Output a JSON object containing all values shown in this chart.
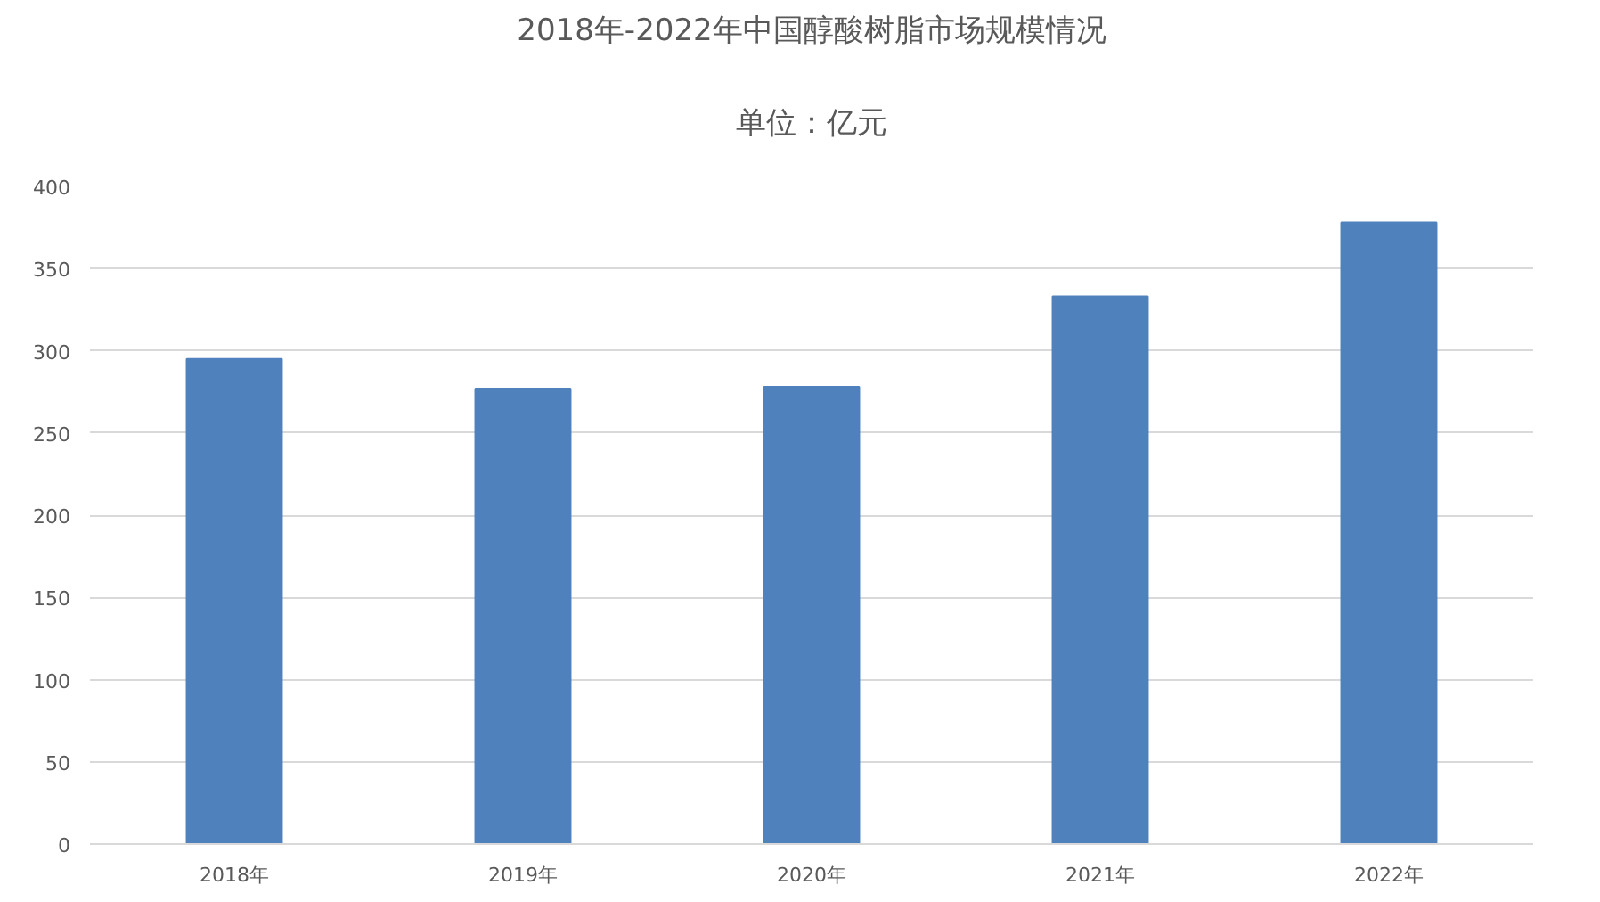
{
  "chart_data": {
    "type": "bar",
    "title": "2018年-2022年中国醇酸树脂市场规模情况",
    "subtitle": "单位：亿元",
    "categories": [
      "2018年",
      "2019年",
      "2020年",
      "2021年",
      "2022年"
    ],
    "values": [
      295,
      277,
      278,
      333,
      378
    ],
    "color": "#4f81bd",
    "ylim": [
      0,
      400
    ],
    "yticks": [
      0,
      50,
      100,
      150,
      200,
      250,
      300,
      350,
      400
    ],
    "grid": "y"
  }
}
